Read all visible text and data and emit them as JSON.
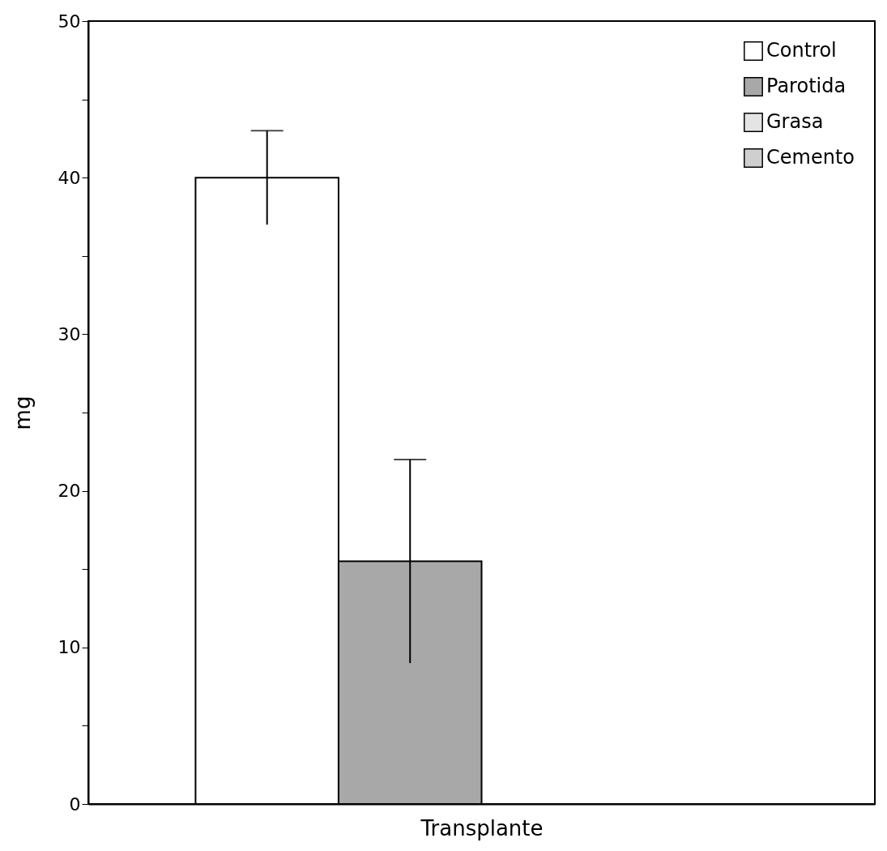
{
  "chart_data": {
    "type": "bar",
    "ylabel": "mg",
    "xlabel": "Transplante",
    "categories": [
      null
    ],
    "series": [
      {
        "name": "Control",
        "color": "#ffffff",
        "values": [
          40
        ],
        "errors": [
          3
        ]
      },
      {
        "name": "Parotida",
        "color": "#a8a8a8",
        "values": [
          15.5
        ],
        "errors": [
          6.5
        ]
      },
      {
        "name": "Grasa",
        "color": "#e4e4e4",
        "values": [
          0
        ]
      },
      {
        "name": "Cemento",
        "color": "#cfcfcf",
        "values": [
          0
        ]
      }
    ],
    "ylim": [
      0,
      50
    ],
    "yticks": [
      0,
      {
        "value": 5,
        "label": null
      },
      10,
      {
        "value": 15,
        "label": null
      },
      20,
      {
        "value": 25,
        "label": null
      },
      30,
      {
        "value": 35,
        "label": null
      },
      40,
      {
        "value": 45,
        "label": null
      },
      50
    ],
    "legend": "top right",
    "grid": false
  }
}
